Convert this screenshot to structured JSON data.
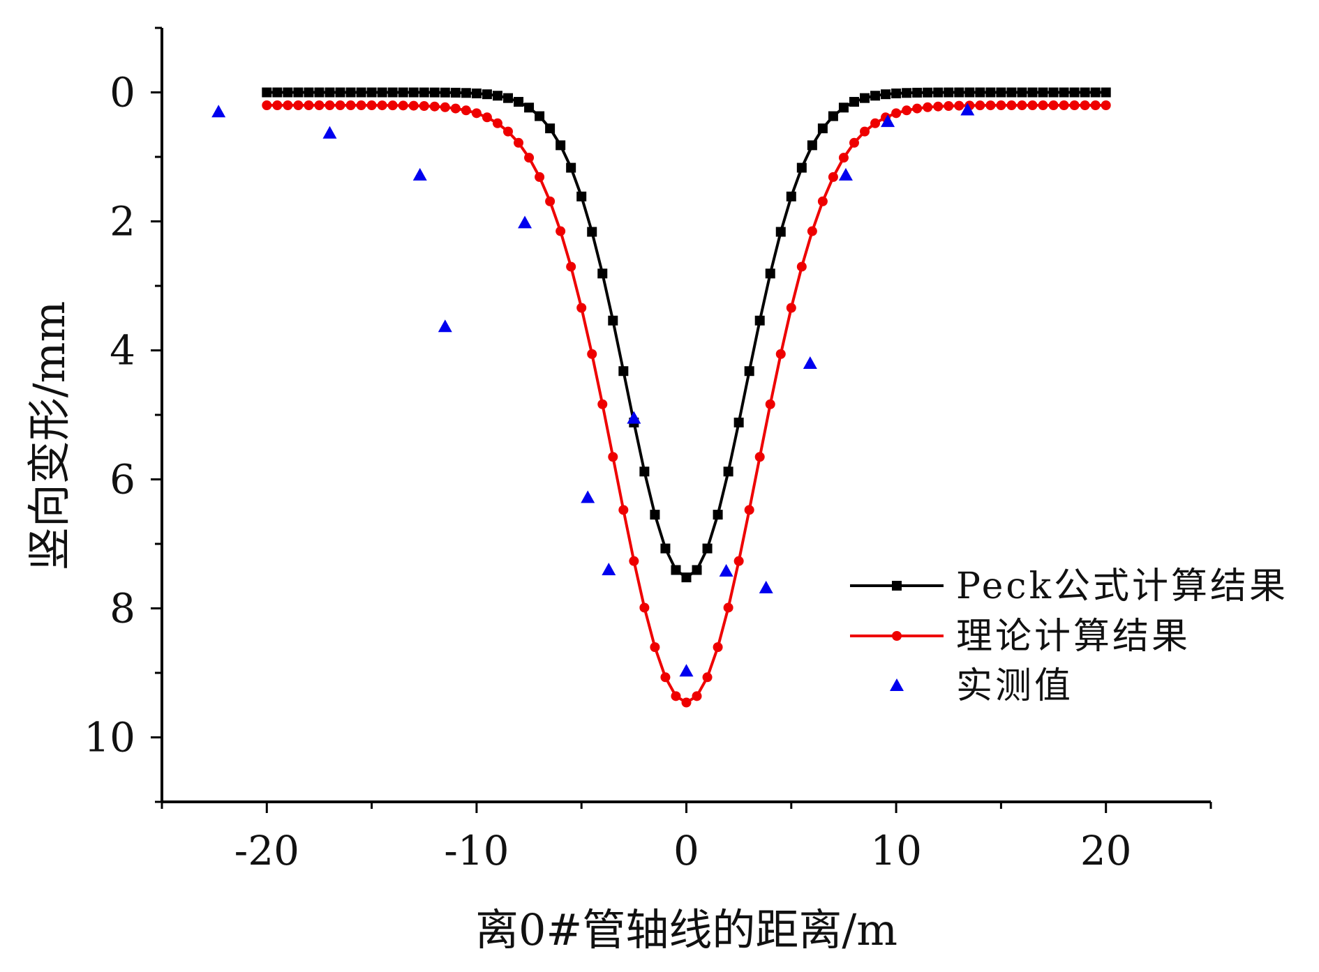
{
  "chart_data": {
    "type": "line",
    "title": "",
    "xlabel": "离0#管轴线的距离/m",
    "ylabel": "竖向变形/mm",
    "xlim": [
      -25,
      25
    ],
    "ylim": [
      11,
      -1
    ],
    "y_inverted": true,
    "grid": false,
    "legend_position": "right",
    "x_ticks": [
      -20,
      -10,
      0,
      10,
      20
    ],
    "x_tick_labels": [
      "-20",
      "-10",
      "0",
      "10",
      "20"
    ],
    "x_minor_ticks": [
      -25,
      -15,
      -5,
      5,
      15,
      25
    ],
    "y_ticks": [
      0,
      2,
      4,
      6,
      8,
      10
    ],
    "y_tick_labels": [
      "0",
      "2",
      "4",
      "6",
      "8",
      "10"
    ],
    "y_minor_ticks": [
      -1,
      1,
      3,
      5,
      7,
      9,
      11
    ],
    "series": [
      {
        "name": "Peck公式计算结果",
        "color": "#000000",
        "marker": "square",
        "curve": {
          "kind": "gaussian",
          "x_min": -20,
          "x_max": 20,
          "step": 0.5,
          "peak": 7.52,
          "i": 2.85,
          "offset": 0.0
        }
      },
      {
        "name": "理论计算结果",
        "color": "#ee0000",
        "marker": "circle",
        "curve": {
          "kind": "gaussian",
          "x_min": -20,
          "x_max": 20,
          "step": 0.5,
          "peak": 9.26,
          "i": 3.4,
          "offset": 0.2
        }
      },
      {
        "name": "实测值",
        "color": "#0000ee",
        "marker": "triangle",
        "points": [
          {
            "x": -22.3,
            "y": 0.3
          },
          {
            "x": -17.0,
            "y": 0.63
          },
          {
            "x": -12.7,
            "y": 1.28
          },
          {
            "x": -11.5,
            "y": 3.63
          },
          {
            "x": -7.7,
            "y": 2.02
          },
          {
            "x": -4.7,
            "y": 6.28
          },
          {
            "x": -3.7,
            "y": 7.4
          },
          {
            "x": -2.5,
            "y": 5.05
          },
          {
            "x": 0.0,
            "y": 8.97
          },
          {
            "x": 1.9,
            "y": 7.42
          },
          {
            "x": 3.8,
            "y": 7.68
          },
          {
            "x": 5.9,
            "y": 4.2
          },
          {
            "x": 7.6,
            "y": 1.28
          },
          {
            "x": 9.6,
            "y": 0.45
          },
          {
            "x": 13.4,
            "y": 0.27
          }
        ]
      }
    ]
  }
}
